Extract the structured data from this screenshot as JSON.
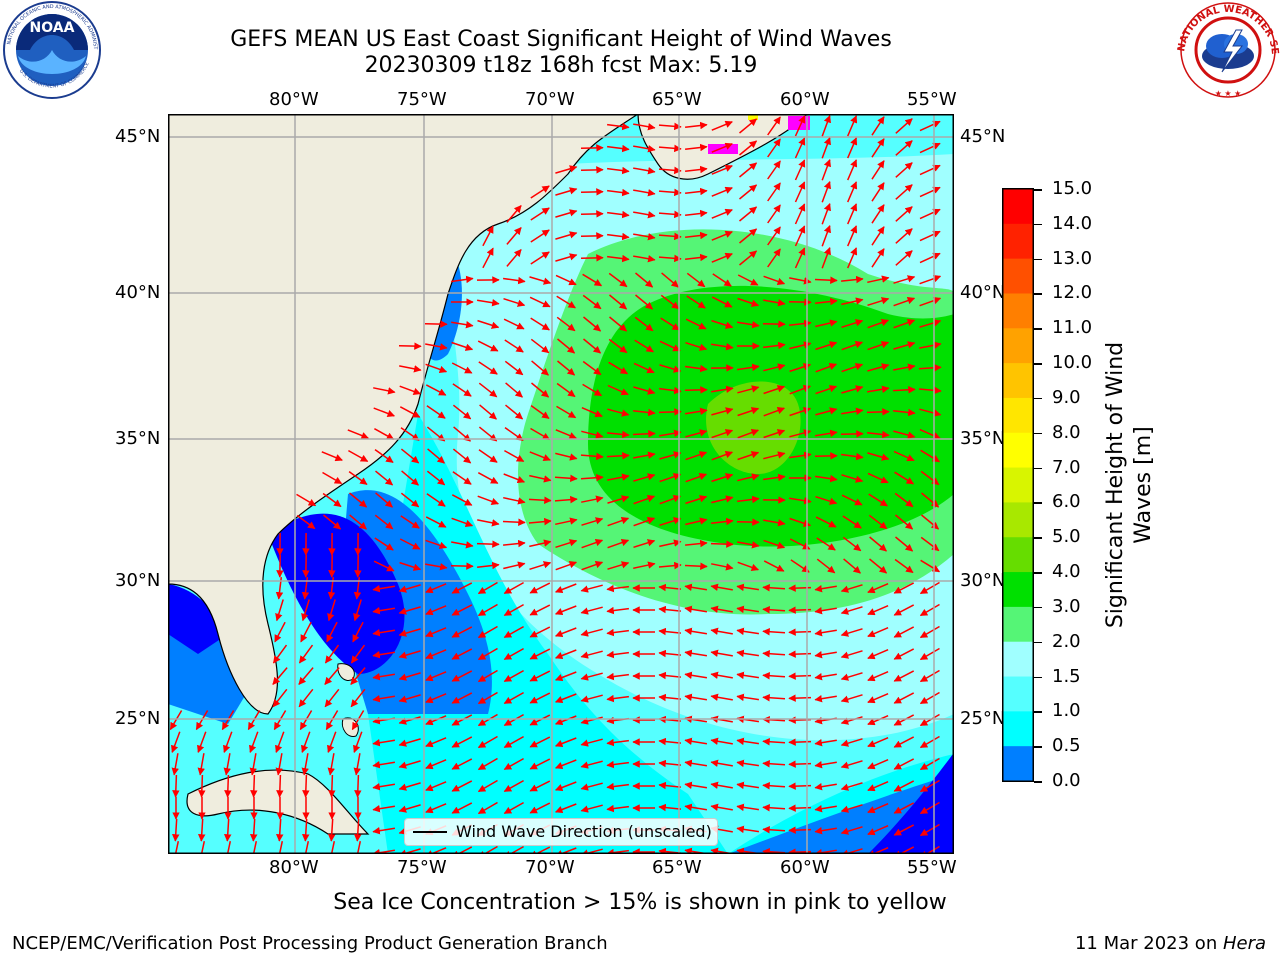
{
  "header": {
    "title_line1": "GEFS MEAN US East Coast Significant Height of Wind Waves",
    "title_line2": "20230309 t18z 168h fcst   Max: 5.19"
  },
  "logos": {
    "noara_text": "NOAA",
    "noaa_ring": "NATIONAL OCEANIC AND ATMOSPHERIC ADMINISTRATION",
    "noaa_ring_bottom": "U.S. DEPARTMENT OF COMMERCE",
    "nws_ring": "NATIONAL WEATHER SERVICE"
  },
  "map": {
    "lon_labels": [
      "80°W",
      "75°W",
      "70°W",
      "65°W",
      "60°W",
      "55°W"
    ],
    "lat_labels": [
      "45°N",
      "40°N",
      "35°N",
      "30°N",
      "25°N"
    ],
    "legend_text": "Wind Wave Direction (unscaled)",
    "colors": {
      "land": "#efedde",
      "ice": "#ff00ff"
    }
  },
  "colorbar": {
    "title": "Significant Height of Wind Waves [m]",
    "ticks": [
      "15.0",
      "14.0",
      "13.0",
      "12.0",
      "11.0",
      "10.0",
      "9.0",
      "8.0",
      "7.0",
      "6.0",
      "5.0",
      "4.0",
      "3.0",
      "2.0",
      "1.5",
      "1.0",
      "0.5",
      "0.0"
    ],
    "colors_top_to_bottom": [
      "#ff0000",
      "#ff2200",
      "#ff5000",
      "#ff7f00",
      "#ffa200",
      "#ffc400",
      "#ffe600",
      "#ffff00",
      "#d8f500",
      "#a8e800",
      "#66dd00",
      "#00e000",
      "#55f576",
      "#a0ffff",
      "#55ffff",
      "#00ffff",
      "#007fff",
      "#0000ff"
    ]
  },
  "footer": {
    "note": "Sea Ice Concentration > 15% is shown in pink to yellow",
    "left": "NCEP/EMC/Verification Post Processing Product Generation Branch",
    "right_date": "11 Mar 2023 on ",
    "right_host": "Hera"
  }
}
